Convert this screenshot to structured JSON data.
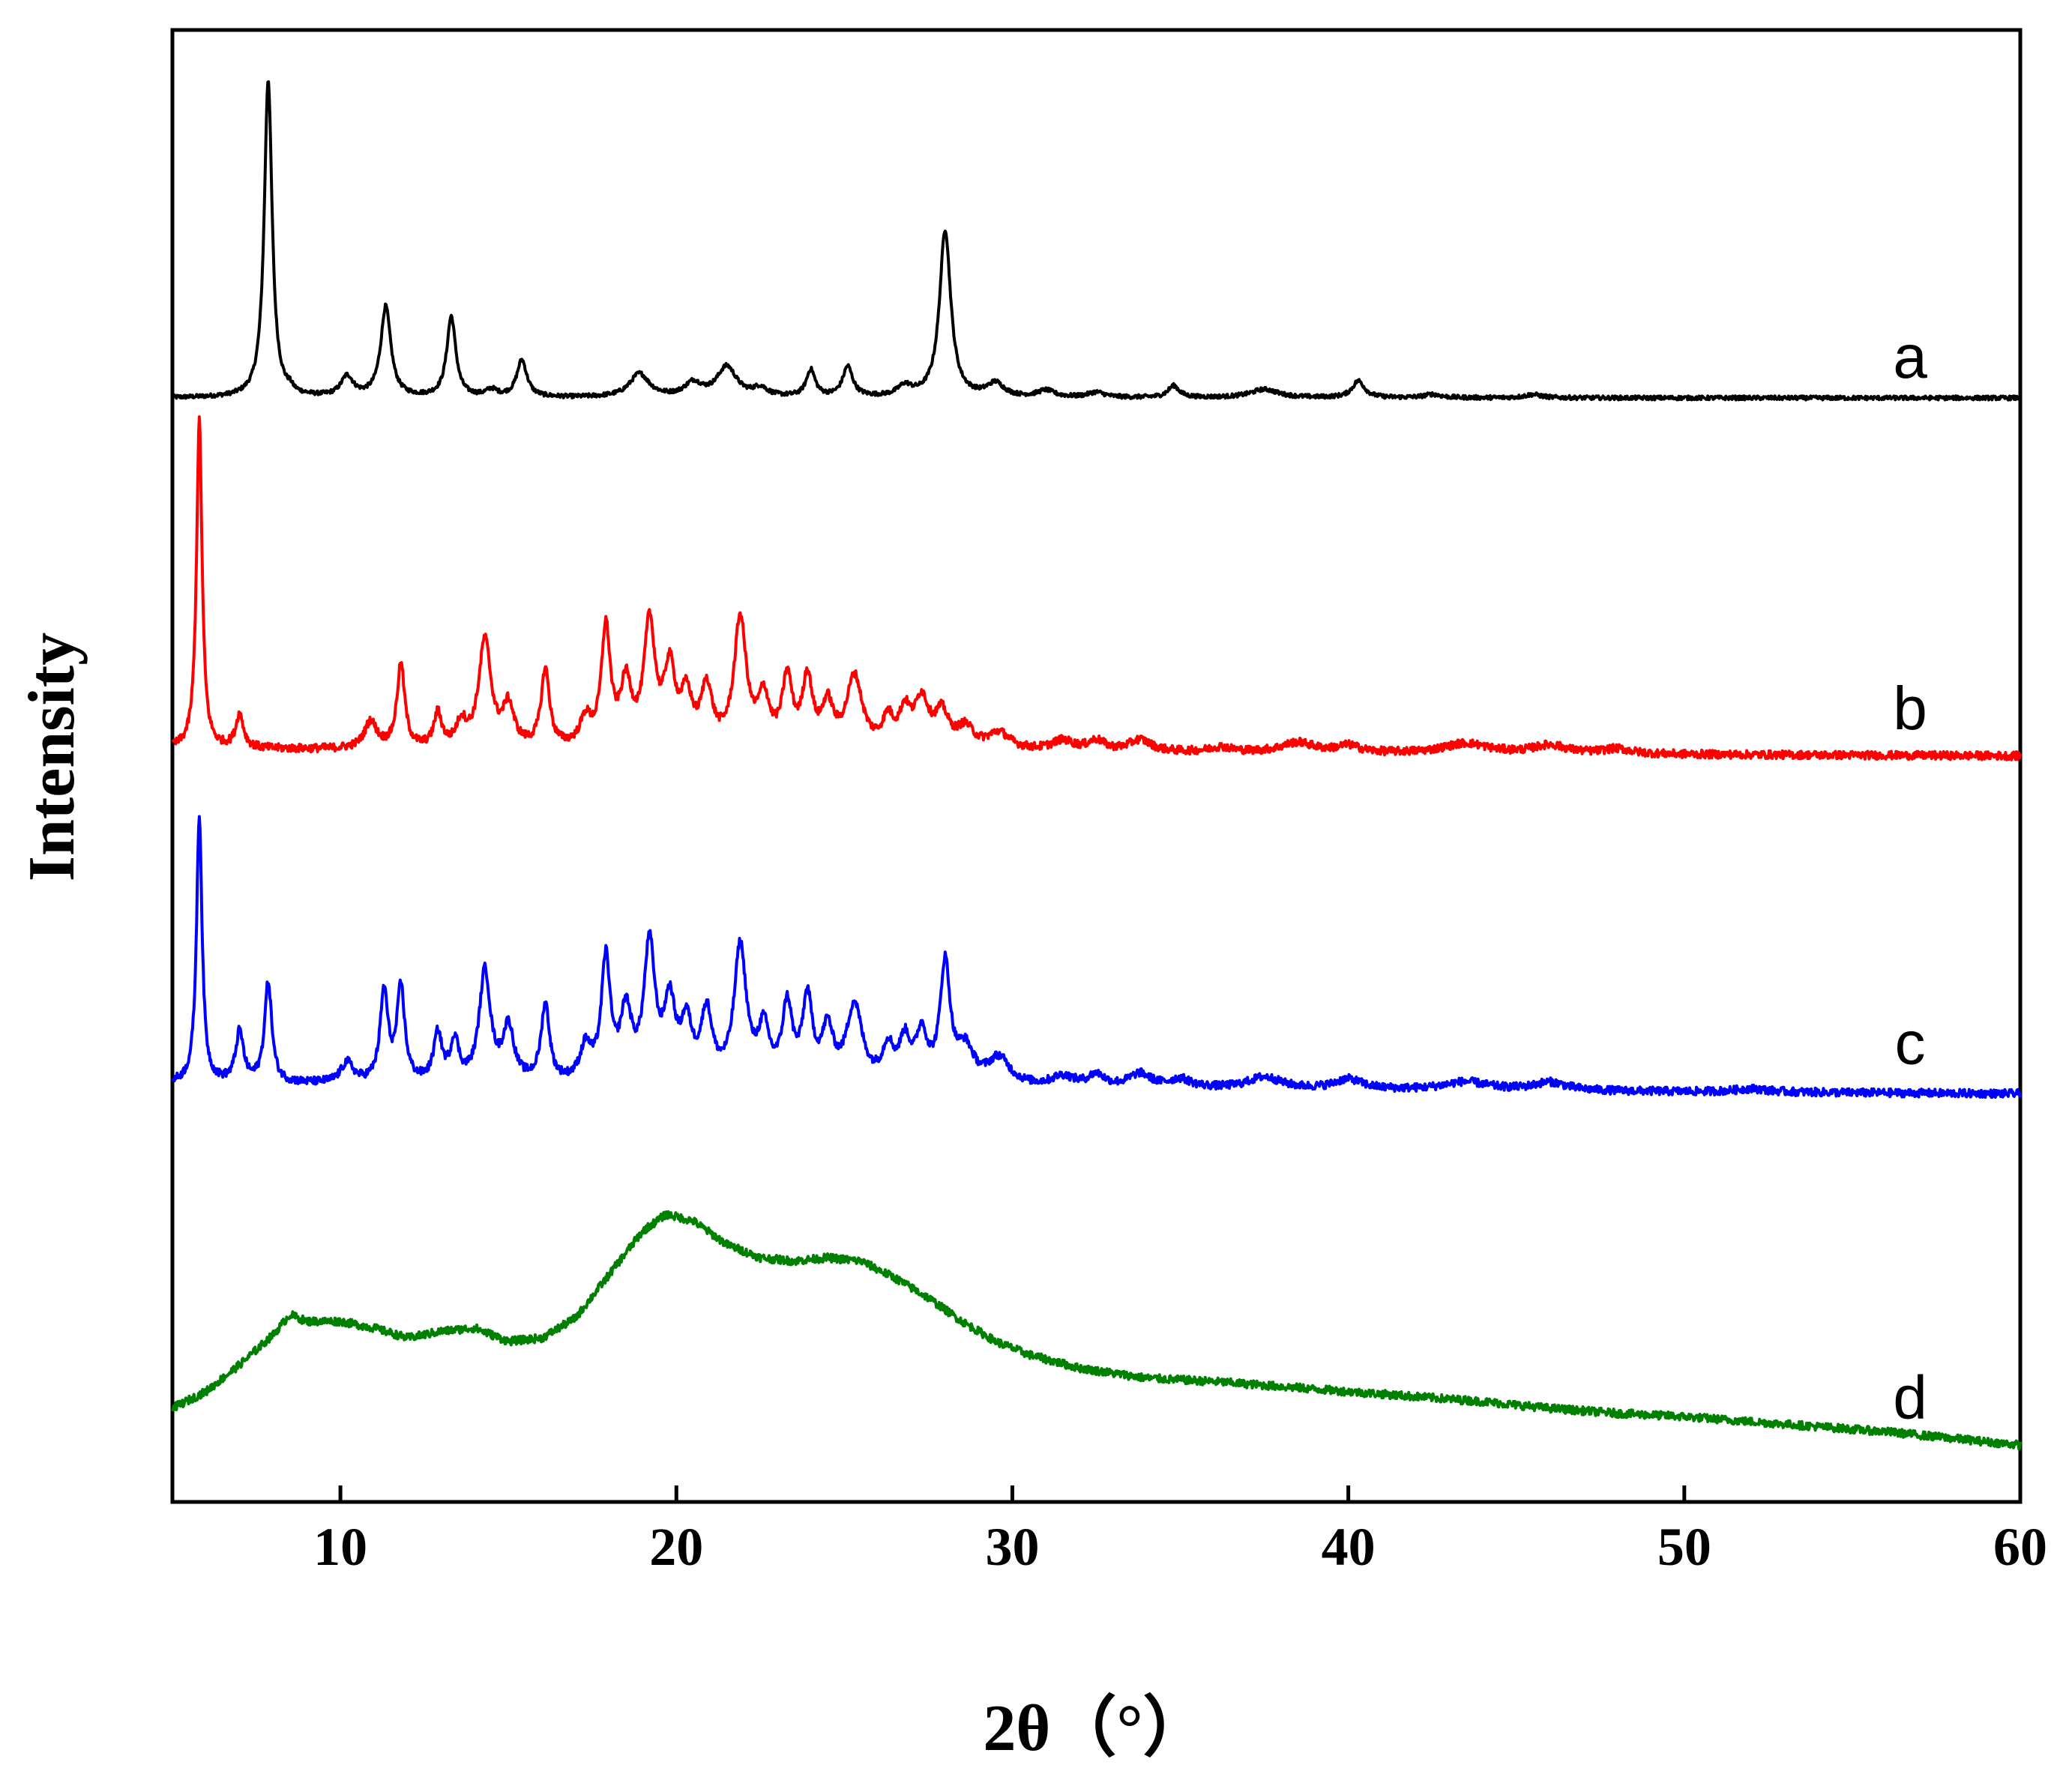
{
  "chart_data": {
    "type": "line",
    "title": "",
    "xlabel": "2θ（°）",
    "ylabel": "Intensity",
    "xlim": [
      5,
      60
    ],
    "ylim": [
      0,
      4.4
    ],
    "xticks": [
      10,
      20,
      30,
      40,
      50,
      60
    ],
    "grid": false,
    "legend": "none",
    "series": [
      {
        "name": "a",
        "color": "#000000",
        "offset": 3.3,
        "baseline_start": 0.0,
        "baseline_end": 0.0,
        "hump": [],
        "noise": 0.006,
        "peaks": [
          [
            7.85,
            0.95,
            0.14
          ],
          [
            8.5,
            0.012,
            0.1
          ],
          [
            10.2,
            0.06,
            0.22
          ],
          [
            11.35,
            0.27,
            0.18
          ],
          [
            13.3,
            0.24,
            0.16
          ],
          [
            14.5,
            0.02,
            0.2
          ],
          [
            15.4,
            0.11,
            0.18
          ],
          [
            18.9,
            0.07,
            0.35
          ],
          [
            20.5,
            0.04,
            0.3
          ],
          [
            21.5,
            0.09,
            0.35
          ],
          [
            22.5,
            0.025,
            0.25
          ],
          [
            24.0,
            0.08,
            0.16
          ],
          [
            25.1,
            0.09,
            0.18
          ],
          [
            26.8,
            0.03,
            0.25
          ],
          [
            28.0,
            0.5,
            0.2
          ],
          [
            29.5,
            0.04,
            0.3
          ],
          [
            31.0,
            0.02,
            0.3
          ],
          [
            32.5,
            0.015,
            0.3
          ],
          [
            34.8,
            0.035,
            0.2
          ],
          [
            37.5,
            0.025,
            0.5
          ],
          [
            40.3,
            0.05,
            0.22
          ],
          [
            42.5,
            0.01,
            0.3
          ],
          [
            45.5,
            0.01,
            0.3
          ]
        ]
      },
      {
        "name": "b",
        "color": "#ff0000",
        "offset": 2.25,
        "baseline_start": 0.0,
        "baseline_end": -0.02,
        "hump": [],
        "noise": 0.012,
        "peaks": [
          [
            5.8,
            0.98,
            0.1
          ],
          [
            7.0,
            0.1,
            0.14
          ],
          [
            10.9,
            0.08,
            0.22
          ],
          [
            11.8,
            0.25,
            0.14
          ],
          [
            12.9,
            0.1,
            0.14
          ],
          [
            13.6,
            0.07,
            0.18
          ],
          [
            14.3,
            0.32,
            0.22
          ],
          [
            15.0,
            0.12,
            0.2
          ],
          [
            16.1,
            0.23,
            0.15
          ],
          [
            17.3,
            0.08,
            0.2
          ],
          [
            17.9,
            0.35,
            0.16
          ],
          [
            18.5,
            0.18,
            0.2
          ],
          [
            19.2,
            0.36,
            0.2
          ],
          [
            19.8,
            0.22,
            0.2
          ],
          [
            20.3,
            0.14,
            0.2
          ],
          [
            20.9,
            0.17,
            0.2
          ],
          [
            21.9,
            0.38,
            0.22
          ],
          [
            22.6,
            0.14,
            0.2
          ],
          [
            23.3,
            0.2,
            0.18
          ],
          [
            23.9,
            0.2,
            0.18
          ],
          [
            24.5,
            0.12,
            0.2
          ],
          [
            25.3,
            0.21,
            0.28
          ],
          [
            26.3,
            0.08,
            0.2
          ],
          [
            26.8,
            0.1,
            0.2
          ],
          [
            27.3,
            0.14,
            0.25
          ],
          [
            27.9,
            0.1,
            0.25
          ],
          [
            28.6,
            0.06,
            0.3
          ],
          [
            29.6,
            0.05,
            0.4
          ],
          [
            31.5,
            0.03,
            0.4
          ],
          [
            32.5,
            0.03,
            0.3
          ],
          [
            33.8,
            0.035,
            0.4
          ],
          [
            36.2,
            0.015,
            0.4
          ],
          [
            38.5,
            0.03,
            0.6
          ],
          [
            40.0,
            0.02,
            0.4
          ],
          [
            43.5,
            0.03,
            0.8
          ],
          [
            46.0,
            0.025,
            0.6
          ],
          [
            48.0,
            0.015,
            0.5
          ]
        ]
      },
      {
        "name": "c",
        "color": "#0000ff",
        "offset": 1.25,
        "baseline_start": 0.0,
        "baseline_end": -0.03,
        "hump": [],
        "noise": 0.012,
        "peaks": [
          [
            5.8,
            0.8,
            0.1
          ],
          [
            7.0,
            0.15,
            0.14
          ],
          [
            7.85,
            0.3,
            0.13
          ],
          [
            10.2,
            0.06,
            0.22
          ],
          [
            11.3,
            0.27,
            0.14
          ],
          [
            11.8,
            0.28,
            0.14
          ],
          [
            12.9,
            0.14,
            0.15
          ],
          [
            13.4,
            0.12,
            0.15
          ],
          [
            14.3,
            0.33,
            0.2
          ],
          [
            15.0,
            0.16,
            0.2
          ],
          [
            16.1,
            0.23,
            0.15
          ],
          [
            17.3,
            0.1,
            0.2
          ],
          [
            17.9,
            0.36,
            0.16
          ],
          [
            18.5,
            0.2,
            0.2
          ],
          [
            19.2,
            0.4,
            0.2
          ],
          [
            19.8,
            0.22,
            0.2
          ],
          [
            20.3,
            0.16,
            0.2
          ],
          [
            20.9,
            0.2,
            0.2
          ],
          [
            21.9,
            0.4,
            0.22
          ],
          [
            22.6,
            0.15,
            0.2
          ],
          [
            23.3,
            0.22,
            0.18
          ],
          [
            23.9,
            0.24,
            0.18
          ],
          [
            24.5,
            0.15,
            0.2
          ],
          [
            25.3,
            0.23,
            0.28
          ],
          [
            26.3,
            0.1,
            0.2
          ],
          [
            26.8,
            0.12,
            0.2
          ],
          [
            27.3,
            0.14,
            0.2
          ],
          [
            28.0,
            0.35,
            0.18
          ],
          [
            28.6,
            0.1,
            0.3
          ],
          [
            29.6,
            0.08,
            0.4
          ],
          [
            31.5,
            0.03,
            0.4
          ],
          [
            32.5,
            0.035,
            0.3
          ],
          [
            33.8,
            0.04,
            0.4
          ],
          [
            35.0,
            0.025,
            0.4
          ],
          [
            37.5,
            0.035,
            0.6
          ],
          [
            40.0,
            0.03,
            0.5
          ],
          [
            43.5,
            0.025,
            0.8
          ],
          [
            46.0,
            0.025,
            0.6
          ],
          [
            52.0,
            0.01,
            0.6
          ]
        ]
      },
      {
        "name": "d",
        "color": "#008000",
        "offset": 0.28,
        "baseline_start": 0.0,
        "baseline_end": 0.0,
        "noise": 0.012,
        "hump": [
          [
            5,
            0.0
          ],
          [
            6,
            0.05
          ],
          [
            7,
            0.13
          ],
          [
            8,
            0.22
          ],
          [
            8.5,
            0.28
          ],
          [
            9,
            0.26
          ],
          [
            10,
            0.26
          ],
          [
            11,
            0.24
          ],
          [
            12,
            0.21
          ],
          [
            13,
            0.23
          ],
          [
            14,
            0.24
          ],
          [
            15,
            0.2
          ],
          [
            16,
            0.21
          ],
          [
            17,
            0.27
          ],
          [
            18,
            0.4
          ],
          [
            19,
            0.53
          ],
          [
            19.7,
            0.58
          ],
          [
            20.5,
            0.56
          ],
          [
            21.5,
            0.49
          ],
          [
            22.5,
            0.45
          ],
          [
            23.5,
            0.44
          ],
          [
            24.5,
            0.45
          ],
          [
            25.5,
            0.44
          ],
          [
            26.5,
            0.39
          ],
          [
            27.5,
            0.33
          ],
          [
            28.5,
            0.26
          ],
          [
            29.5,
            0.2
          ],
          [
            30.5,
            0.16
          ],
          [
            32,
            0.12
          ],
          [
            34,
            0.09
          ],
          [
            36,
            0.08
          ],
          [
            38,
            0.065
          ],
          [
            40,
            0.05
          ],
          [
            42,
            0.035
          ],
          [
            44,
            0.02
          ],
          [
            46,
            0.0
          ],
          [
            48,
            -0.015
          ],
          [
            50,
            -0.025
          ],
          [
            52,
            -0.04
          ],
          [
            54,
            -0.055
          ],
          [
            56,
            -0.07
          ],
          [
            58,
            -0.09
          ],
          [
            60,
            -0.11
          ]
        ],
        "peaks": []
      }
    ]
  }
}
